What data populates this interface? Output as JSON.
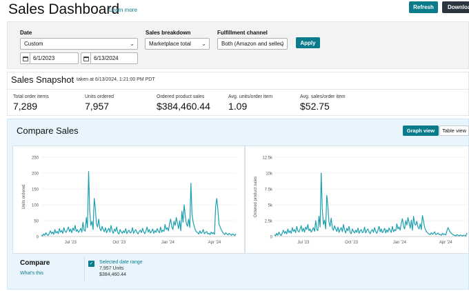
{
  "header": {
    "title": "Sales Dashboard",
    "learn_more": "Learn more",
    "refresh_label": "Refresh",
    "download_label": "Download"
  },
  "filters": {
    "date_label": "Date",
    "date_range_value": "Custom",
    "start_date": "6/1/2023",
    "end_date": "6/13/2024",
    "breakdown_label": "Sales breakdown",
    "breakdown_value": "Marketplace total",
    "fulfillment_label": "Fulfillment channel",
    "fulfillment_value": "Both (Amazon and seller)",
    "apply_label": "Apply"
  },
  "snapshot": {
    "title": "Sales Snapshot",
    "taken_at": "taken at 6/13/2024, 1:21:00 PM PDT",
    "metrics": [
      {
        "label": "Total order items",
        "value": "7,289"
      },
      {
        "label": "Units ordered",
        "value": "7,957"
      },
      {
        "label": "Ordered product sales",
        "value": "$384,460.44"
      },
      {
        "label": "Avg. units/order item",
        "value": "1.09"
      },
      {
        "label": "Avg. sales/order item",
        "value": "$52.75"
      }
    ]
  },
  "compare_sales": {
    "title": "Compare Sales",
    "graph_view_label": "Graph view",
    "table_view_label": "Table view"
  },
  "compare_legend": {
    "title": "Compare",
    "whats_this": "What's this",
    "series_label": "Selected date range",
    "units_text": "7,957 Units",
    "sales_text": "$384,460.44",
    "checked": true
  },
  "colors": {
    "accent": "#0a7b8a",
    "line": "#1a9fae",
    "dark_button": "#2b3540",
    "compare_bg": "#e8f5fc"
  },
  "chart_data": [
    {
      "type": "line",
      "title": "",
      "ylabel": "Units ordered",
      "xlabel": "",
      "ylim": [
        0,
        250
      ],
      "y_ticks": [
        "0",
        "50",
        "100",
        "150",
        "200",
        "250"
      ],
      "x_ticks": [
        "Jul '23",
        "Oct '23",
        "Jan '24",
        "Apr '24"
      ],
      "series": [
        {
          "values": [
            5,
            2,
            8,
            4,
            12,
            6,
            3,
            10,
            18,
            9,
            14,
            7,
            22,
            11,
            16,
            9,
            25,
            14,
            19,
            10,
            28,
            17,
            13,
            21,
            30,
            15,
            24,
            12,
            27,
            19,
            35,
            16,
            22,
            13,
            18,
            26,
            14,
            45,
            20,
            17,
            60,
            28,
            205,
            80,
            35,
            48,
            22,
            120,
            90,
            40,
            30,
            55,
            25,
            18,
            32,
            22,
            15,
            28,
            12,
            20,
            26,
            14,
            35,
            18,
            10,
            24,
            16,
            30,
            12,
            8,
            22,
            15,
            10,
            18,
            12,
            25,
            9,
            16,
            20,
            11,
            14,
            28,
            10,
            18,
            22,
            13,
            8,
            16,
            20,
            12,
            26,
            15,
            9,
            18,
            30,
            14,
            22,
            11,
            16,
            24,
            10,
            19,
            13,
            25,
            17,
            12,
            30,
            14,
            20,
            16,
            38,
            22,
            28,
            18,
            40,
            55,
            30,
            22,
            48,
            35,
            60,
            42,
            25,
            50,
            18,
            80,
            45,
            100,
            65,
            40,
            32,
            55,
            28,
            168,
            70,
            45,
            32,
            20,
            15,
            12,
            8,
            18,
            10,
            14,
            22,
            9,
            12,
            16,
            8,
            10,
            6,
            14,
            9,
            12,
            7,
            95,
            120,
            85,
            40,
            30,
            22,
            15,
            10,
            6,
            12,
            8,
            5,
            10,
            7,
            4,
            8,
            6,
            3,
            9
          ]
        }
      ]
    },
    {
      "type": "line",
      "title": "",
      "ylabel": "Ordered product sales",
      "xlabel": "",
      "ylim": [
        0,
        12500
      ],
      "y_ticks": [
        "0",
        "2.5k",
        "5k",
        "7.5k",
        "10k",
        "12.5k"
      ],
      "x_ticks": [
        "Jul '23",
        "Oct '23",
        "Jan '24",
        "Apr '24"
      ],
      "series": [
        {
          "values": [
            300,
            100,
            500,
            200,
            700,
            300,
            150,
            600,
            1000,
            500,
            800,
            400,
            1200,
            600,
            900,
            500,
            1400,
            800,
            1100,
            600,
            1600,
            900,
            700,
            1200,
            1700,
            800,
            1300,
            700,
            1500,
            1100,
            1900,
            900,
            1200,
            700,
            1000,
            1400,
            800,
            2500,
            1100,
            950,
            3200,
            1500,
            10000,
            4200,
            1900,
            2600,
            1200,
            6500,
            4800,
            2200,
            1600,
            2900,
            1300,
            1000,
            1700,
            1200,
            800,
            1500,
            650,
            1100,
            1400,
            750,
            1900,
            1000,
            550,
            1300,
            900,
            1600,
            650,
            450,
            1200,
            800,
            550,
            1000,
            650,
            1350,
            500,
            900,
            1100,
            600,
            750,
            1500,
            550,
            1000,
            1200,
            700,
            450,
            900,
            1100,
            650,
            1400,
            800,
            500,
            1000,
            1600,
            750,
            1200,
            600,
            900,
            1300,
            550,
            1050,
            700,
            1350,
            950,
            650,
            1600,
            750,
            1100,
            900,
            2000,
            1200,
            1500,
            1000,
            2100,
            2800,
            1600,
            1200,
            2500,
            1800,
            3000,
            2200,
            1300,
            2600,
            1000,
            3200,
            2000,
            1800,
            2400,
            1500,
            1200,
            2000,
            1100,
            3300,
            2400,
            1400,
            1000,
            700,
            500,
            400,
            300,
            600,
            350,
            500,
            750,
            300,
            400,
            550,
            300,
            350,
            200,
            500,
            300,
            400,
            250,
            900,
            1400,
            1000,
            700,
            500,
            350,
            250,
            150,
            100,
            300,
            200,
            100,
            250,
            150,
            100,
            200,
            150,
            100,
            550
          ]
        }
      ]
    }
  ]
}
